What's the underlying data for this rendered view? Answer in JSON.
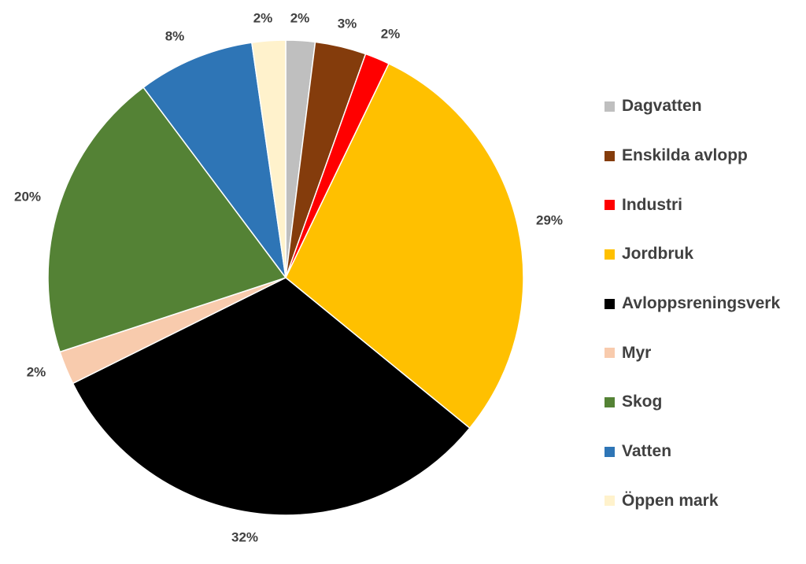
{
  "chart_data": {
    "type": "pie",
    "title": "",
    "slices": [
      {
        "name": "Dagvatten",
        "value": 2,
        "label": "2%",
        "color": "#BFBFBF"
      },
      {
        "name": "Enskilda avlopp",
        "value": 3.5,
        "label": "3%",
        "color": "#843C0C"
      },
      {
        "name": "Industri",
        "value": 1.7,
        "label": "2%",
        "color": "#FF0000"
      },
      {
        "name": "Jordbruk",
        "value": 29,
        "label": "29%",
        "color": "#FFC000"
      },
      {
        "name": "Avloppsreningsverk",
        "value": 32,
        "label": "32%",
        "color": "#000000"
      },
      {
        "name": "Myr",
        "value": 2.3,
        "label": "2%",
        "color": "#F8CBAD"
      },
      {
        "name": "Skog",
        "value": 20,
        "label": "20%",
        "color": "#548235"
      },
      {
        "name": "Vatten",
        "value": 8,
        "label": "8%",
        "color": "#2E75B6"
      },
      {
        "name": "Öppen mark",
        "value": 2.3,
        "label": "2%",
        "color": "#FFF2CC"
      }
    ],
    "legend_position": "right"
  }
}
